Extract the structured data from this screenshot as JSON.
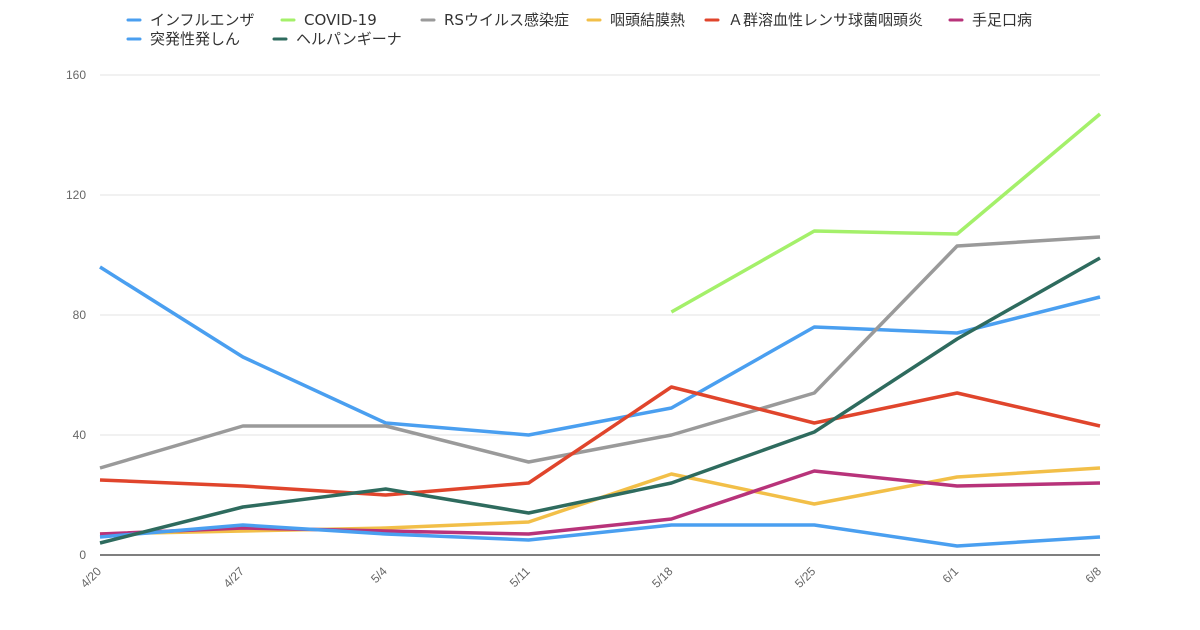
{
  "chart_data": {
    "type": "line",
    "categories": [
      "4/20",
      "4/27",
      "5/4",
      "5/11",
      "5/18",
      "5/25",
      "6/1",
      "6/8"
    ],
    "ylim": [
      0,
      160
    ],
    "yticks": [
      0,
      40,
      80,
      120,
      160
    ],
    "grid": true,
    "legend_position": "top",
    "series": [
      {
        "name": "インフルエンザ",
        "color": "#4a9ff0",
        "values": [
          96,
          66,
          44,
          40,
          49,
          76,
          74,
          86
        ]
      },
      {
        "name": "COVID-19",
        "color": "#a4f06a",
        "values": [
          null,
          null,
          null,
          null,
          81,
          108,
          107,
          147
        ]
      },
      {
        "name": "RSウイルス感染症",
        "color": "#9a9a9a",
        "values": [
          29,
          43,
          43,
          31,
          40,
          54,
          103,
          106
        ]
      },
      {
        "name": "咽頭結膜熱",
        "color": "#f2bf48",
        "values": [
          7,
          8,
          9,
          11,
          27,
          17,
          26,
          29
        ]
      },
      {
        "name": "Ａ群溶血性レンサ球菌咽頭炎",
        "color": "#e0452c",
        "values": [
          25,
          23,
          20,
          24,
          56,
          44,
          54,
          43
        ]
      },
      {
        "name": "手足口病",
        "color": "#b8337a",
        "values": [
          7,
          9,
          8,
          7,
          12,
          28,
          23,
          24
        ]
      },
      {
        "name": "突発性発しん",
        "color": "#4a9ff0",
        "values": [
          6,
          10,
          7,
          5,
          10,
          10,
          3,
          6
        ]
      },
      {
        "name": "ヘルパンギーナ",
        "color": "#2e6b5e",
        "values": [
          4,
          16,
          22,
          14,
          24,
          41,
          72,
          99
        ]
      }
    ]
  }
}
